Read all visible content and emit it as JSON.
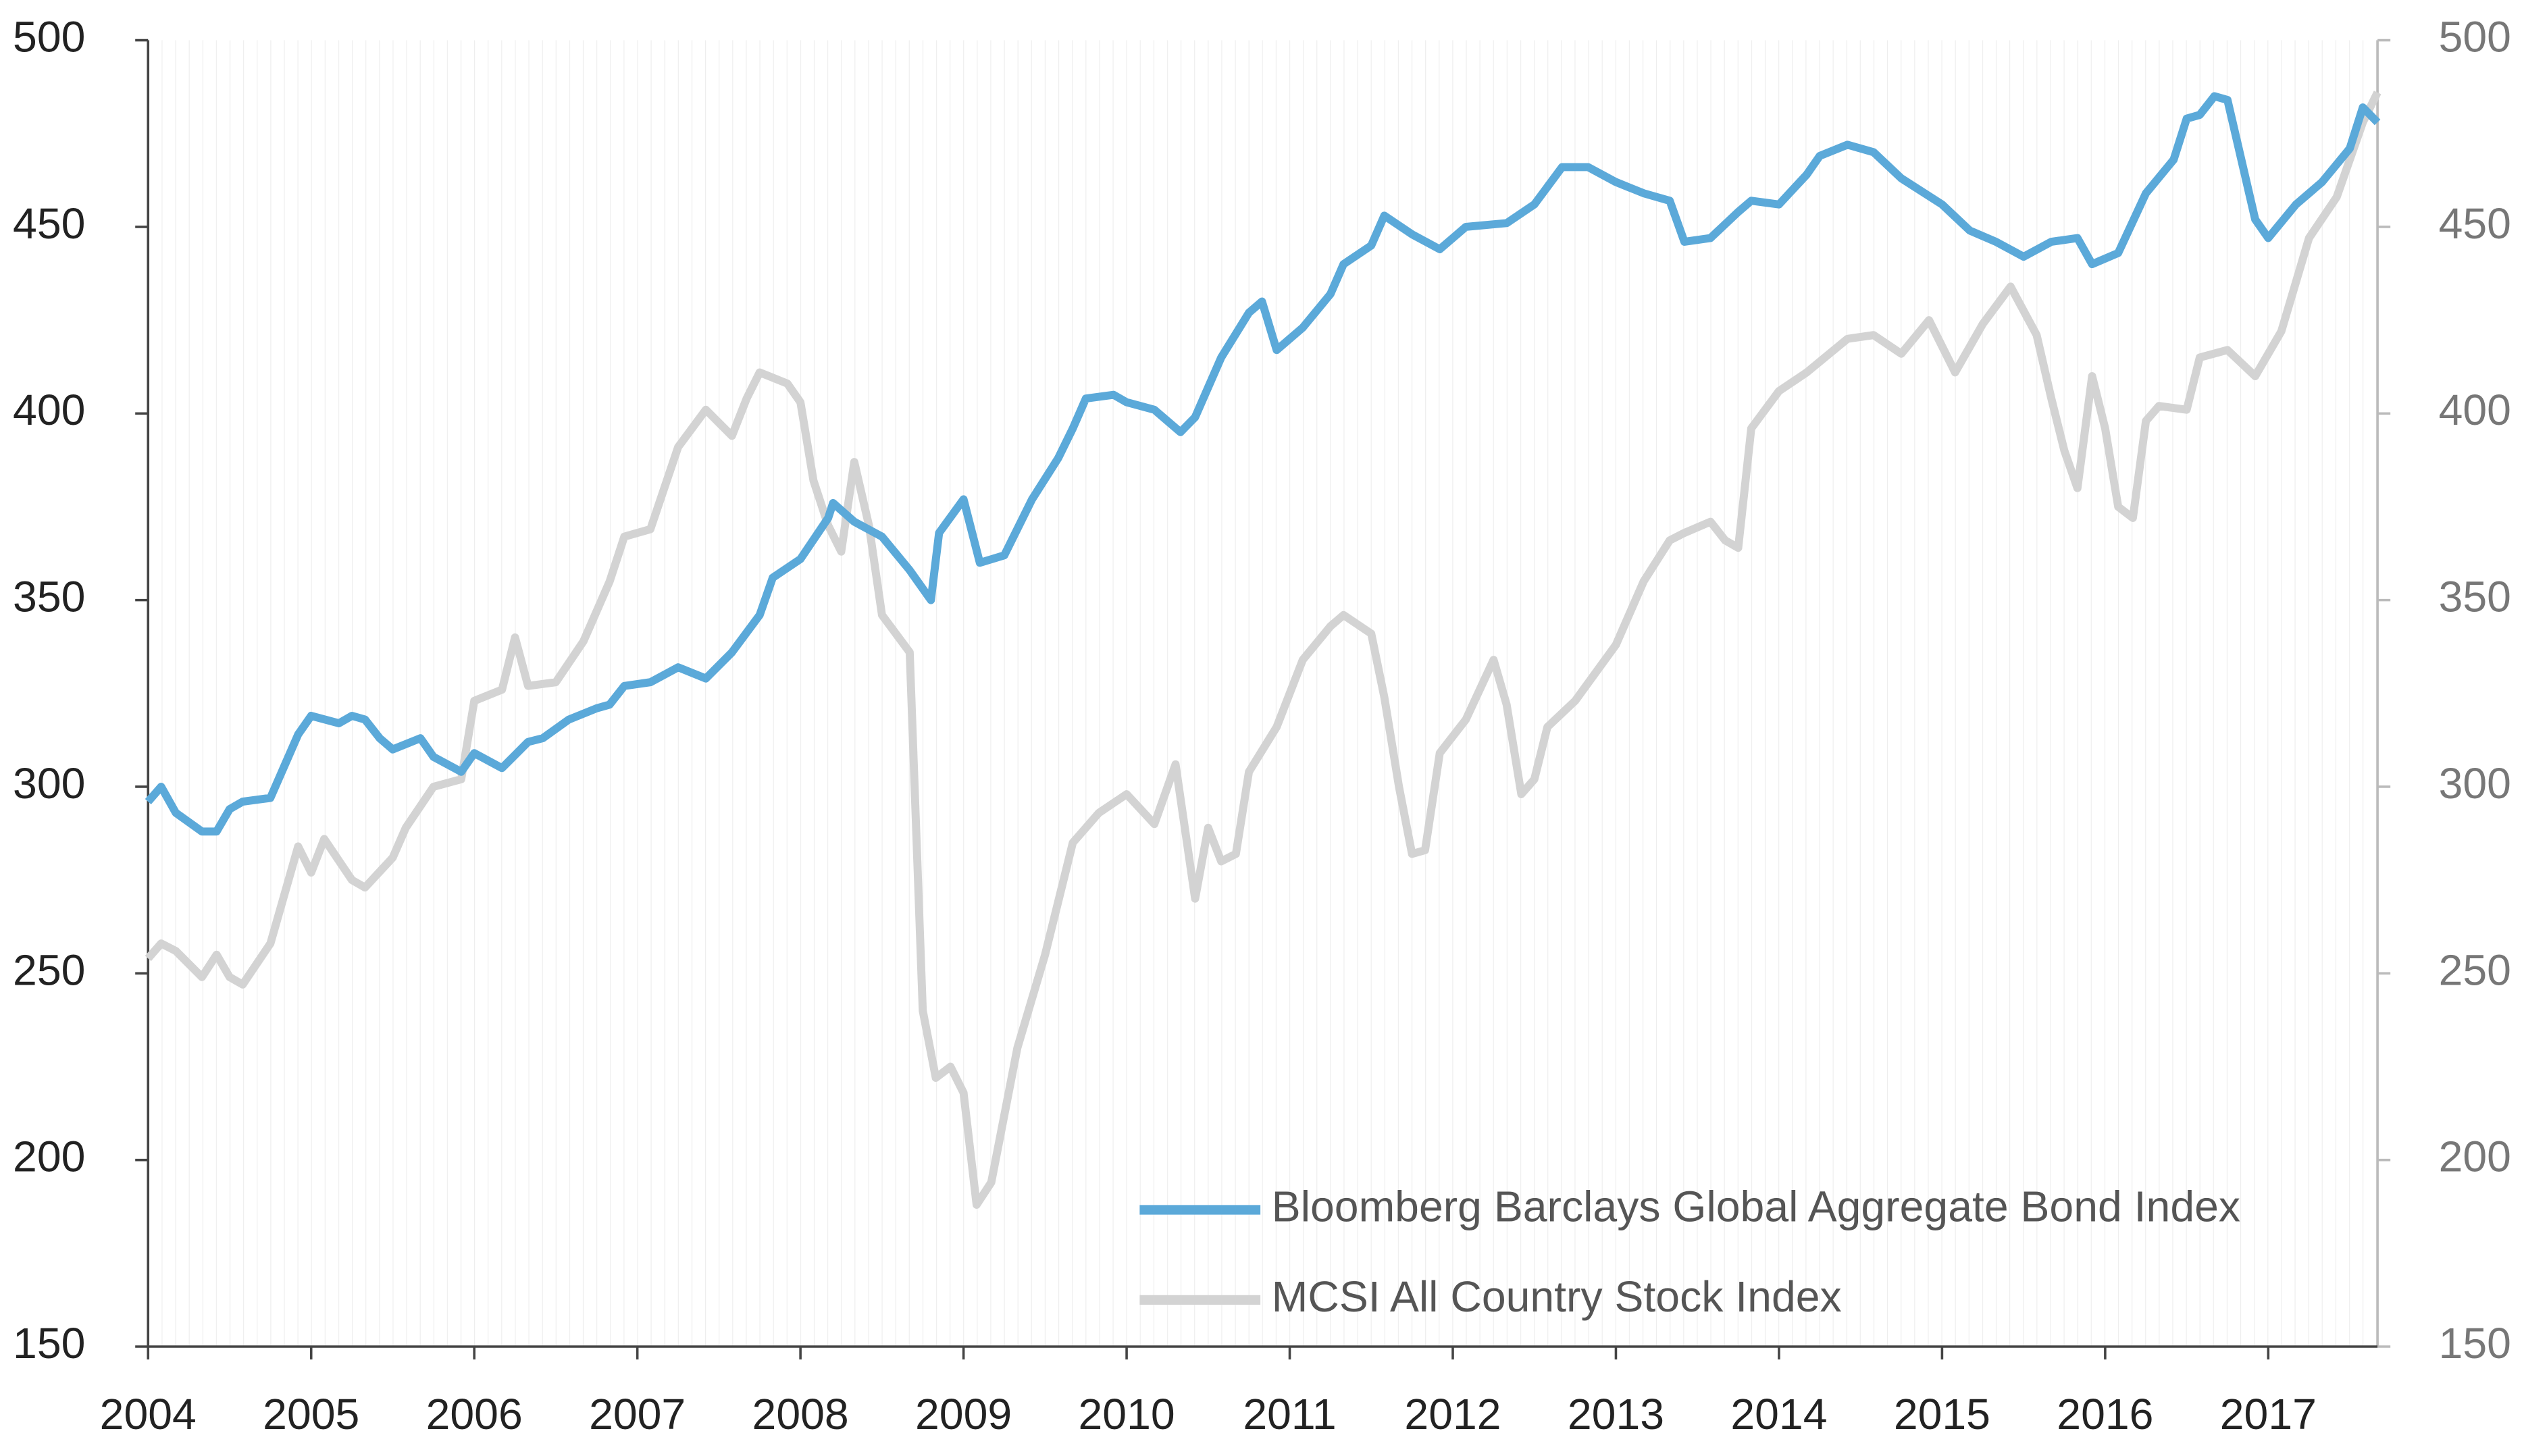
{
  "chart_data": {
    "type": "line",
    "xlim": [
      2004,
      2017.67
    ],
    "xticks": [
      2004,
      2005,
      2006,
      2007,
      2008,
      2009,
      2010,
      2011,
      2012,
      2013,
      2014,
      2015,
      2016,
      2017
    ],
    "ylim": [
      150,
      500
    ],
    "yticks": [
      150,
      200,
      250,
      300,
      350,
      400,
      450,
      500
    ],
    "y2lim": [
      150,
      500
    ],
    "y2ticks": [
      150,
      200,
      250,
      300,
      350,
      400,
      450,
      500
    ],
    "legend": "lower right",
    "series": [
      {
        "name": "Bloomberg Barclays Global Aggregate Bond Index",
        "color": "#5ba9d9",
        "x": [
          2004.0,
          2004.08,
          2004.17,
          2004.33,
          2004.42,
          2004.5,
          2004.58,
          2004.75,
          2004.83,
          2004.92,
          2005.0,
          2005.17,
          2005.25,
          2005.33,
          2005.42,
          2005.5,
          2005.67,
          2005.75,
          2005.92,
          2006.0,
          2006.17,
          2006.33,
          2006.42,
          2006.58,
          2006.75,
          2006.83,
          2006.92,
          2007.08,
          2007.25,
          2007.42,
          2007.58,
          2007.75,
          2007.83,
          2008.0,
          2008.17,
          2008.2,
          2008.33,
          2008.5,
          2008.67,
          2008.8,
          2008.85,
          2009.0,
          2009.1,
          2009.25,
          2009.42,
          2009.58,
          2009.67,
          2009.75,
          2009.92,
          2010.0,
          2010.17,
          2010.33,
          2010.42,
          2010.58,
          2010.75,
          2010.83,
          2010.92,
          2011.08,
          2011.25,
          2011.33,
          2011.5,
          2011.58,
          2011.75,
          2011.92,
          2012.0,
          2012.08,
          2012.33,
          2012.5,
          2012.67,
          2012.83,
          2013.0,
          2013.17,
          2013.33,
          2013.42,
          2013.58,
          2013.75,
          2013.83,
          2014.0,
          2014.17,
          2014.25,
          2014.42,
          2014.58,
          2014.75,
          2015.0,
          2015.17,
          2015.33,
          2015.5,
          2015.67,
          2015.83,
          2015.92,
          2016.08,
          2016.25,
          2016.42,
          2016.5,
          2016.58,
          2016.67,
          2016.75,
          2016.92,
          2017.0,
          2017.17,
          2017.33,
          2017.5,
          2017.58,
          2017.67
        ],
        "values": [
          296,
          300,
          293,
          288,
          288,
          294,
          296,
          297,
          305,
          314,
          319,
          317,
          319,
          318,
          313,
          310,
          313,
          308,
          304,
          309,
          305,
          312,
          313,
          318,
          321,
          322,
          327,
          328,
          332,
          329,
          336,
          346,
          356,
          361,
          372,
          376,
          371,
          367,
          358,
          350,
          368,
          377,
          360,
          362,
          377,
          388,
          396,
          404,
          405,
          403,
          401,
          395,
          399,
          415,
          427,
          430,
          417,
          423,
          432,
          440,
          445,
          453,
          448,
          444,
          447,
          450,
          451,
          456,
          466,
          466,
          462,
          459,
          457,
          446,
          447,
          454,
          457,
          456,
          464,
          469,
          472,
          470,
          463,
          456,
          449,
          446,
          442,
          446,
          447,
          440,
          443,
          459,
          468,
          479,
          480,
          485,
          484,
          452,
          447,
          456,
          462,
          471,
          482,
          478
        ]
      },
      {
        "name": "MCSI All Country Stock Index",
        "color": "#d3d3d3",
        "x": [
          2004.0,
          2004.08,
          2004.17,
          2004.33,
          2004.42,
          2004.5,
          2004.58,
          2004.75,
          2004.92,
          2005.0,
          2005.08,
          2005.25,
          2005.33,
          2005.5,
          2005.58,
          2005.75,
          2005.92,
          2006.0,
          2006.17,
          2006.25,
          2006.33,
          2006.5,
          2006.67,
          2006.83,
          2006.92,
          2007.08,
          2007.25,
          2007.42,
          2007.58,
          2007.67,
          2007.75,
          2007.92,
          2008.0,
          2008.08,
          2008.17,
          2008.25,
          2008.33,
          2008.42,
          2008.5,
          2008.67,
          2008.75,
          2008.83,
          2008.92,
          2009.0,
          2009.08,
          2009.17,
          2009.33,
          2009.5,
          2009.67,
          2009.83,
          2010.0,
          2010.17,
          2010.3,
          2010.42,
          2010.5,
          2010.58,
          2010.67,
          2010.75,
          2010.92,
          2011.08,
          2011.25,
          2011.33,
          2011.5,
          2011.58,
          2011.67,
          2011.75,
          2011.83,
          2011.92,
          2012.08,
          2012.25,
          2012.33,
          2012.42,
          2012.5,
          2012.58,
          2012.75,
          2013.0,
          2013.17,
          2013.33,
          2013.42,
          2013.58,
          2013.67,
          2013.75,
          2013.83,
          2014.0,
          2014.17,
          2014.42,
          2014.58,
          2014.75,
          2014.92,
          2015.08,
          2015.25,
          2015.42,
          2015.58,
          2015.67,
          2015.75,
          2015.83,
          2015.92,
          2016.0,
          2016.08,
          2016.17,
          2016.25,
          2016.33,
          2016.5,
          2016.58,
          2016.75,
          2016.92,
          2017.08,
          2017.25,
          2017.42,
          2017.58,
          2017.67
        ],
        "values": [
          254,
          258,
          256,
          249,
          255,
          249,
          247,
          258,
          284,
          277,
          286,
          275,
          273,
          281,
          289,
          300,
          302,
          323,
          326,
          340,
          327,
          328,
          339,
          355,
          367,
          369,
          391,
          401,
          394,
          404,
          411,
          408,
          403,
          382,
          370,
          363,
          387,
          370,
          346,
          336,
          240,
          222,
          225,
          218,
          188,
          194,
          230,
          255,
          285,
          293,
          298,
          290,
          306,
          270,
          289,
          280,
          282,
          304,
          316,
          334,
          343,
          346,
          341,
          324,
          300,
          282,
          283,
          309,
          318,
          334,
          322,
          298,
          302,
          316,
          323,
          338,
          355,
          366,
          368,
          371,
          366,
          364,
          396,
          406,
          411,
          420,
          421,
          416,
          425,
          411,
          424,
          434,
          421,
          404,
          390,
          380,
          410,
          396,
          375,
          372,
          398,
          402,
          401,
          415,
          417,
          410,
          422,
          447,
          458,
          478,
          486
        ]
      }
    ]
  }
}
